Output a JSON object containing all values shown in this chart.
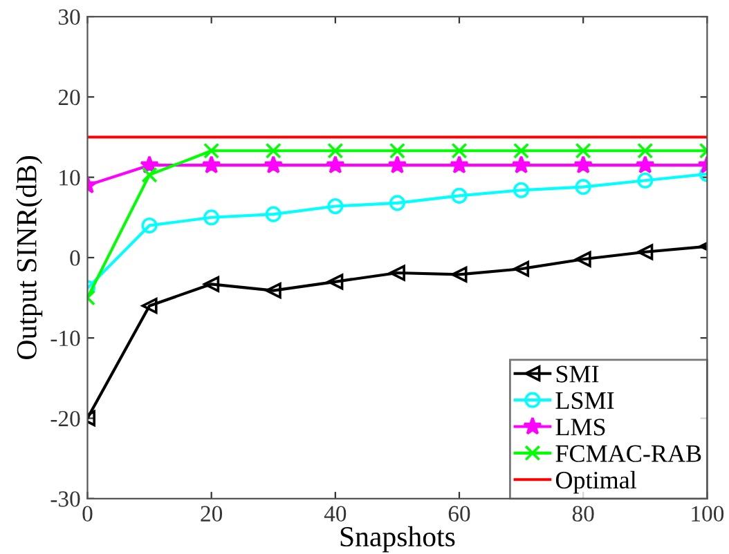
{
  "chart_data": {
    "type": "line",
    "xlabel": "Snapshots",
    "ylabel": "Output SINR(dB)",
    "x": [
      0,
      10,
      20,
      30,
      40,
      50,
      60,
      70,
      80,
      90,
      100
    ],
    "series": [
      {
        "name": "SMI",
        "color": "#000000",
        "marker": "triangle",
        "values": [
          -20,
          -6.0,
          -3.3,
          -4.1,
          -3.0,
          -1.9,
          -2.1,
          -1.4,
          -0.2,
          0.7,
          1.4
        ]
      },
      {
        "name": "LSMI",
        "color": "#00ffff",
        "marker": "circle",
        "values": [
          -3.8,
          4.0,
          5.0,
          5.4,
          6.4,
          6.8,
          7.7,
          8.4,
          8.8,
          9.6,
          10.4
        ]
      },
      {
        "name": "LMS",
        "color": "#ff00ff",
        "marker": "star",
        "values": [
          9.0,
          11.5,
          11.5,
          11.5,
          11.5,
          11.5,
          11.5,
          11.5,
          11.5,
          11.5,
          11.5
        ]
      },
      {
        "name": "FCMAC-RAB",
        "color": "#00ff00",
        "marker": "cross",
        "values": [
          -5.0,
          10.3,
          13.3,
          13.3,
          13.3,
          13.3,
          13.3,
          13.3,
          13.3,
          13.3,
          13.3
        ]
      },
      {
        "name": "Optimal",
        "color": "#ff0000",
        "marker": "none",
        "x": [
          0,
          100
        ],
        "values": [
          15,
          15
        ]
      }
    ],
    "xlim": [
      0,
      100
    ],
    "xticks": [
      0,
      20,
      40,
      60,
      80,
      100
    ],
    "ylim": [
      -30,
      30
    ],
    "yticks": [
      -30,
      -20,
      -10,
      0,
      10,
      20,
      30
    ],
    "grid": false,
    "legend": "bottom right",
    "line_style": "solid"
  }
}
